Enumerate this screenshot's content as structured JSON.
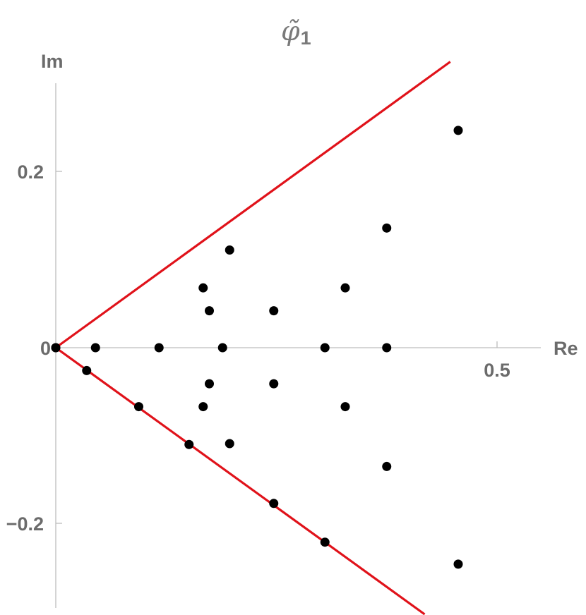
{
  "chart_data": {
    "type": "scatter",
    "title": "φ̃",
    "title_subscript": "1",
    "xlabel": "Re",
    "ylabel": "Im",
    "xlim": [
      0,
      0.55
    ],
    "ylim": [
      -0.3,
      0.32
    ],
    "x_ticks": [
      {
        "value": 0,
        "label": "0"
      },
      {
        "value": 0.5,
        "label": "0.5"
      }
    ],
    "y_ticks": [
      {
        "value": 0.2,
        "label": "0.2"
      },
      {
        "value": 0,
        "label": "0"
      },
      {
        "value": -0.2,
        "label": "−0.2"
      }
    ],
    "grid": false,
    "legend": "none",
    "point_color": "#000000",
    "line_color": "#e0121a",
    "series": [
      {
        "points": [
          [
            0.0,
            0.0
          ],
          [
            0.0,
            0.0
          ],
          [
            0.045,
            0.0
          ],
          [
            0.117,
            0.0
          ],
          [
            0.189,
            0.0
          ],
          [
            0.305,
            0.0
          ],
          [
            0.375,
            0.0
          ],
          [
            0.167,
            0.068
          ],
          [
            0.174,
            0.042
          ],
          [
            0.197,
            0.111
          ],
          [
            0.247,
            0.042
          ],
          [
            0.328,
            0.068
          ],
          [
            0.375,
            0.136
          ],
          [
            0.456,
            0.247
          ],
          [
            0.035,
            -0.026
          ],
          [
            0.094,
            -0.067
          ],
          [
            0.151,
            -0.11
          ],
          [
            0.174,
            -0.041
          ],
          [
            0.167,
            -0.067
          ],
          [
            0.197,
            -0.109
          ],
          [
            0.247,
            -0.041
          ],
          [
            0.247,
            -0.177
          ],
          [
            0.305,
            -0.221
          ],
          [
            0.328,
            -0.067
          ],
          [
            0.375,
            -0.135
          ],
          [
            0.456,
            -0.246
          ]
        ]
      }
    ],
    "lines": [
      {
        "x": [
          0,
          0.447
        ],
        "y": [
          0,
          0.325
        ]
      },
      {
        "x": [
          0,
          0.418
        ],
        "y": [
          0,
          -0.303
        ]
      }
    ]
  }
}
